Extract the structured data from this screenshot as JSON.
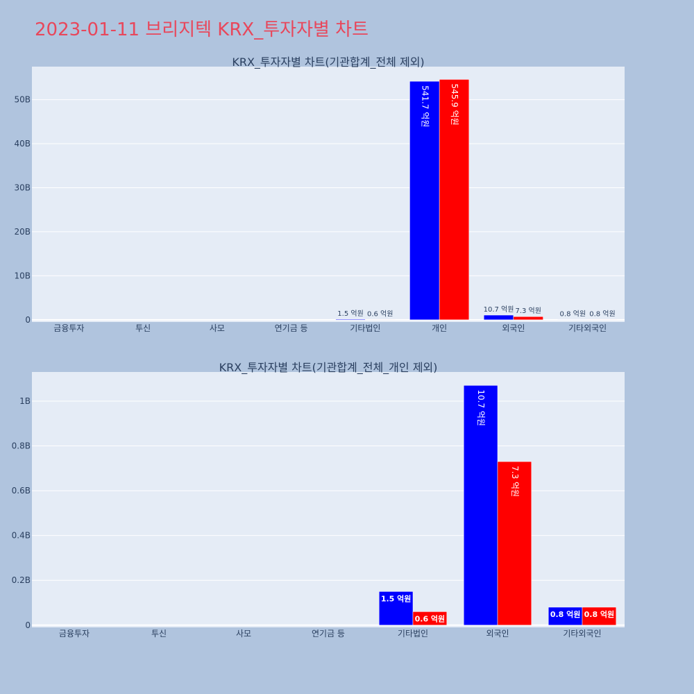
{
  "page": {
    "title": "2023-01-11 브리지텍 KRX_투자자별 차트"
  },
  "colors": {
    "buy": "#0000ff",
    "sell": "#ff0000",
    "plot_bg": "#e5ecf6",
    "paper_bg": "#b0c4de",
    "title": "#e8475b"
  },
  "chart_data": [
    {
      "type": "bar",
      "title": "KRX_투자자별 차트(기관합계_전체 제외)",
      "categories": [
        "금융투자",
        "투신",
        "사모",
        "연기금 등",
        "기타법인",
        "개인",
        "외국인",
        "기타외국인"
      ],
      "series": [
        {
          "color": "#0000ff",
          "values": [
            0,
            0,
            0,
            0,
            150000000,
            54170000000,
            1070000000,
            80000000
          ],
          "labels": [
            "",
            "",
            "",
            "",
            "1.5 억원",
            "541.7 억원",
            "10.7 억원",
            "0.8 억원"
          ]
        },
        {
          "color": "#ff0000",
          "values": [
            0,
            0,
            0,
            0,
            60000000,
            54590000000,
            730000000,
            80000000
          ],
          "labels": [
            "",
            "",
            "",
            "",
            "0.6 억원",
            "545.9 억원",
            "7.3 억원",
            "0.8 억원"
          ]
        }
      ],
      "ylim": [
        -500000000,
        57500000000
      ],
      "yticks": [
        0,
        10000000000,
        20000000000,
        30000000000,
        40000000000,
        50000000000
      ],
      "yticklabels": [
        "0",
        "10B",
        "20B",
        "30B",
        "40B",
        "50B"
      ],
      "grid": true
    },
    {
      "type": "bar",
      "title": "KRX_투자자별 차트(기관합계_전체_개인 제외)",
      "categories": [
        "금융투자",
        "투신",
        "사모",
        "연기금 등",
        "기타법인",
        "외국인",
        "기타외국인"
      ],
      "series": [
        {
          "color": "#0000ff",
          "values": [
            0,
            0,
            0,
            0,
            150000000,
            1070000000,
            80000000
          ],
          "labels": [
            "",
            "",
            "",
            "",
            "1.5 억원",
            "10.7 억원",
            "0.8 억원"
          ]
        },
        {
          "color": "#ff0000",
          "values": [
            0,
            0,
            0,
            0,
            60000000,
            730000000,
            80000000
          ],
          "labels": [
            "",
            "",
            "",
            "",
            "0.6 억원",
            "7.3 억원",
            "0.8 억원"
          ]
        }
      ],
      "ylim": [
        -10000000,
        1130000000
      ],
      "yticks": [
        0,
        200000000,
        400000000,
        600000000,
        800000000,
        1000000000
      ],
      "yticklabels": [
        "0",
        "0.2B",
        "0.4B",
        "0.6B",
        "0.8B",
        "1B"
      ],
      "grid": true
    }
  ]
}
